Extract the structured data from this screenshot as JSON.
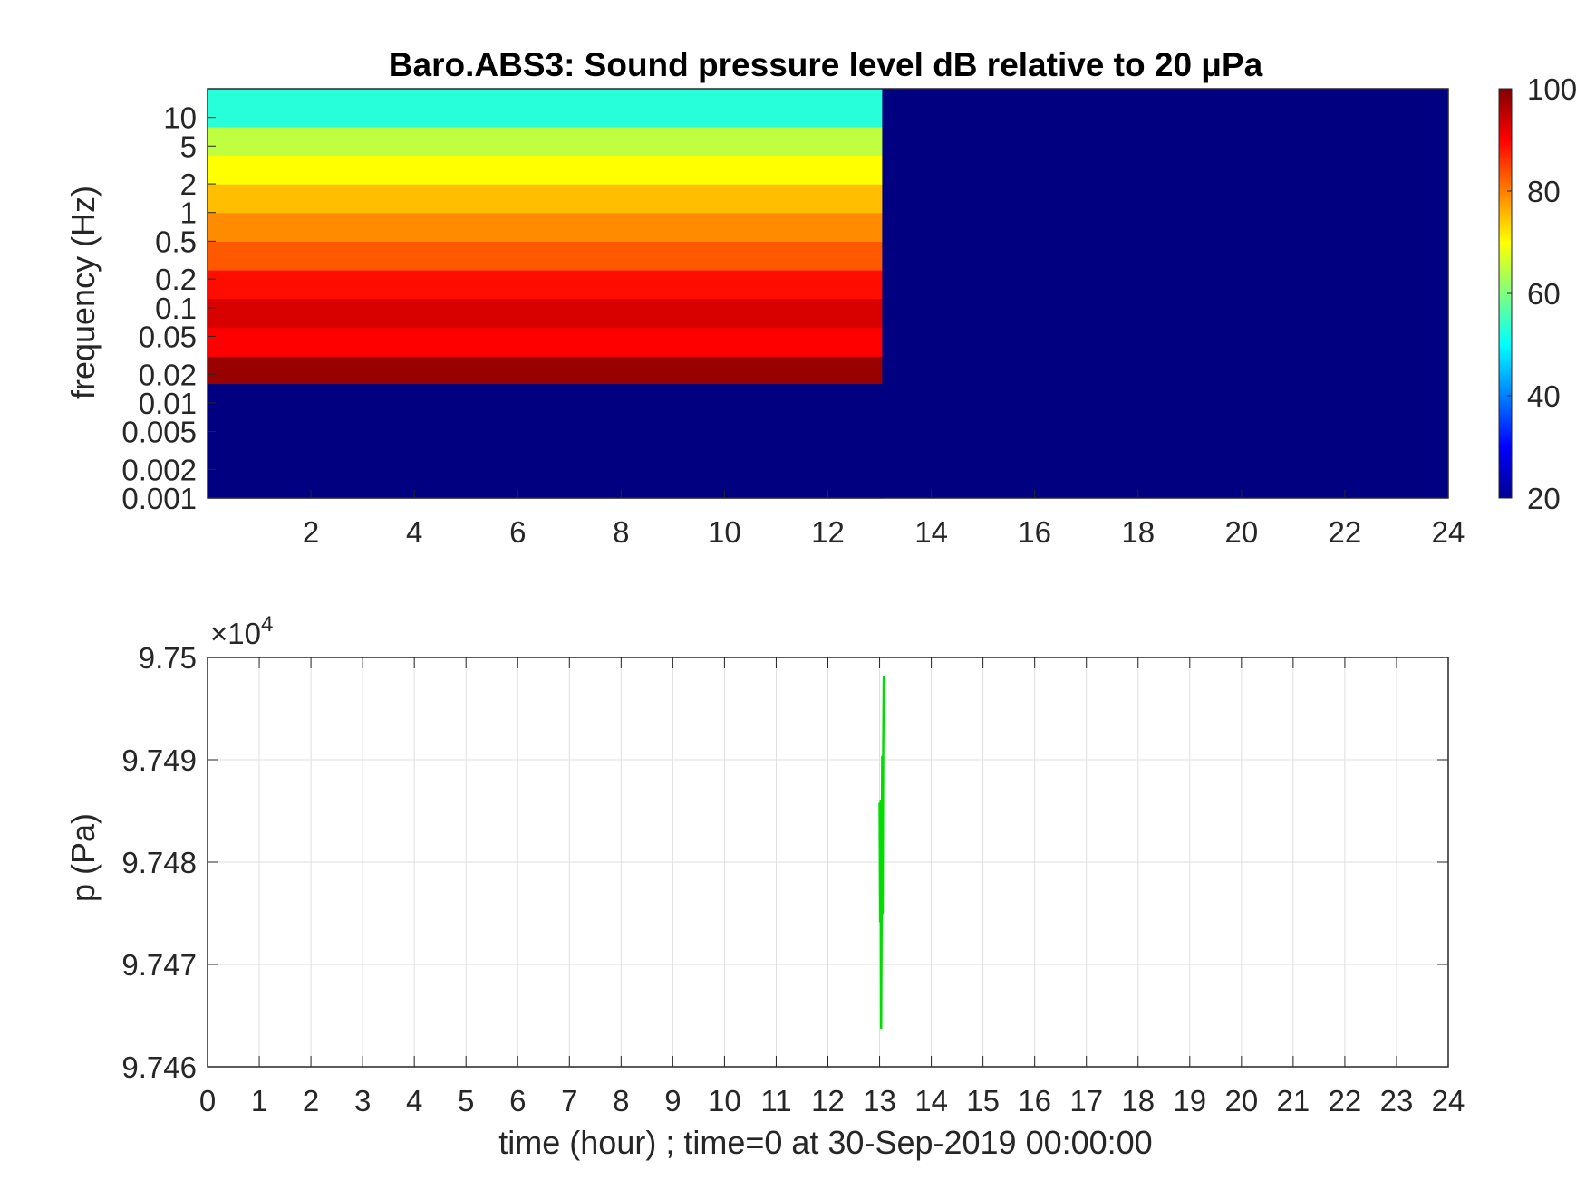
{
  "chart_data": [
    {
      "type": "heatmap",
      "title": "Baro.ABS3: Sound pressure level dB relative to 20 μPa",
      "xlabel": "",
      "ylabel": "frequency (Hz)",
      "xlim": [
        0,
        24
      ],
      "x_ticks": [
        "2",
        "4",
        "6",
        "8",
        "10",
        "12",
        "14",
        "16",
        "18",
        "20",
        "22",
        "24"
      ],
      "y_scale": "log",
      "ylim": [
        0.001,
        20
      ],
      "y_ticks": [
        "0.001",
        "0.002",
        "0.005",
        "0.01",
        "0.02",
        "0.05",
        "0.1",
        "0.2",
        "0.5",
        "1",
        "2",
        "5",
        "10"
      ],
      "colormap": "jet",
      "colorbar": {
        "range": [
          20,
          100
        ],
        "ticks": [
          "20",
          "40",
          "60",
          "80",
          "100"
        ]
      },
      "background_db": 20,
      "data_end_time": 13.05,
      "bands": [
        {
          "f_low": 0.001,
          "f_high": 0.016,
          "db": 20
        },
        {
          "f_low": 0.016,
          "f_high": 0.031,
          "db": 98
        },
        {
          "f_low": 0.031,
          "f_high": 0.062,
          "db": 90
        },
        {
          "f_low": 0.062,
          "f_high": 0.125,
          "db": 93
        },
        {
          "f_low": 0.125,
          "f_high": 0.25,
          "db": 89
        },
        {
          "f_low": 0.25,
          "f_high": 0.5,
          "db": 83
        },
        {
          "f_low": 0.5,
          "f_high": 1,
          "db": 79
        },
        {
          "f_low": 1,
          "f_high": 2,
          "db": 75
        },
        {
          "f_low": 2,
          "f_high": 4,
          "db": 70
        },
        {
          "f_low": 4,
          "f_high": 8,
          "db": 65
        },
        {
          "f_low": 8,
          "f_high": 20,
          "db": 53
        }
      ]
    },
    {
      "type": "line",
      "title": "",
      "xlabel": "time (hour) ; time=0 at 30-Sep-2019 00:00:00",
      "ylabel": "p (Pa)",
      "xlim": [
        0,
        24
      ],
      "x_ticks": [
        "0",
        "1",
        "2",
        "3",
        "4",
        "5",
        "6",
        "7",
        "8",
        "9",
        "10",
        "11",
        "12",
        "13",
        "14",
        "15",
        "16",
        "17",
        "18",
        "19",
        "20",
        "21",
        "22",
        "23",
        "24"
      ],
      "ylim": [
        97460,
        97500
      ],
      "y_ticks": [
        "9.746",
        "9.747",
        "9.748",
        "9.749",
        "9.75"
      ],
      "y_exponent_label": "×10",
      "y_exponent_power": "4",
      "grid": true,
      "series": [
        {
          "color": "#00dd00",
          "x": [
            13.0,
            13.01,
            13.02,
            13.03,
            13.04,
            13.05,
            13.06,
            13.07,
            13.08
          ],
          "y": [
            97485.8,
            97474.2,
            97486.0,
            97463.8,
            97475.5,
            97490.3,
            97475.0,
            97491.0,
            97498.2
          ]
        }
      ]
    }
  ]
}
